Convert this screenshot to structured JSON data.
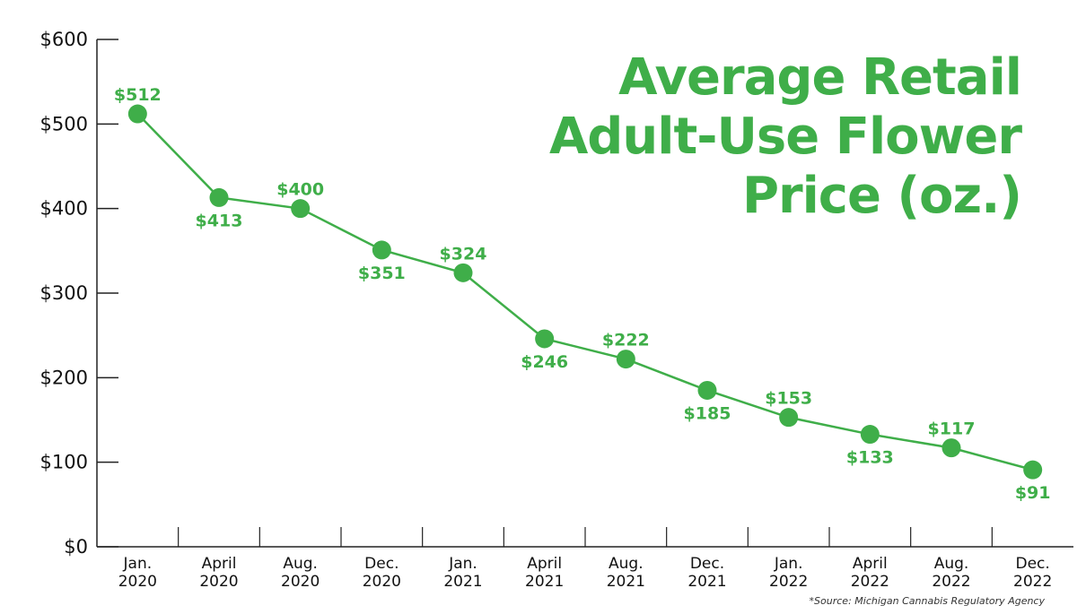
{
  "colors": {
    "accent": "#3fae49",
    "axis": "#222222",
    "text": "#111111"
  },
  "chart_data": {
    "type": "line",
    "title_lines": [
      "Average Retail",
      "Adult-Use Flower",
      "Price (oz.)"
    ],
    "xlabel": "",
    "ylabel": "",
    "ylim": [
      0,
      600
    ],
    "yticks": [
      0,
      100,
      200,
      300,
      400,
      500,
      600
    ],
    "ytick_labels": [
      "$0",
      "$100",
      "$200",
      "$300",
      "$400",
      "$500",
      "$600"
    ],
    "categories": [
      [
        "Jan.",
        "2020"
      ],
      [
        "April",
        "2020"
      ],
      [
        "Aug.",
        "2020"
      ],
      [
        "Dec.",
        "2020"
      ],
      [
        "Jan.",
        "2021"
      ],
      [
        "April",
        "2021"
      ],
      [
        "Aug.",
        "2021"
      ],
      [
        "Dec.",
        "2021"
      ],
      [
        "Jan.",
        "2022"
      ],
      [
        "April",
        "2022"
      ],
      [
        "Aug.",
        "2022"
      ],
      [
        "Dec.",
        "2022"
      ]
    ],
    "values": [
      512,
      413,
      400,
      351,
      324,
      246,
      222,
      185,
      153,
      133,
      117,
      91
    ],
    "data_labels": [
      "$512",
      "$413",
      "$400",
      "$351",
      "$324",
      "$246",
      "$222",
      "$185",
      "$153",
      "$133",
      "$117",
      "$91"
    ],
    "label_positions": [
      "above",
      "below",
      "above",
      "below",
      "above",
      "below",
      "above",
      "below",
      "above",
      "below",
      "above",
      "below"
    ],
    "grid": false,
    "source": "*Source: Michigan Cannabis Regulatory Agency"
  }
}
